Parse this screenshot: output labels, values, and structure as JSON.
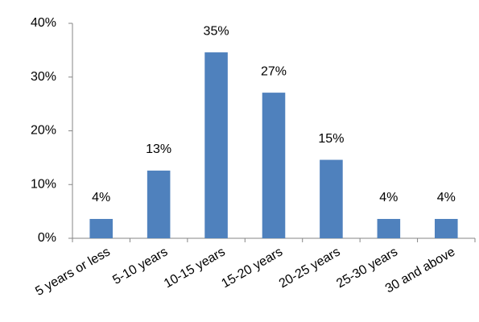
{
  "chart_data": {
    "type": "bar",
    "categories": [
      "5 years or less",
      "5-10 years",
      "10-15 years",
      "15-20 years",
      "20-25 years",
      "25-30 years",
      "30 and above"
    ],
    "values": [
      3.6,
      12.6,
      34.6,
      27.1,
      14.6,
      3.6,
      3.6
    ],
    "value_labels": [
      "4%",
      "13%",
      "35%",
      "27%",
      "15%",
      "4%",
      "4%"
    ],
    "color": "#4f81bd",
    "ylim": [
      0,
      40
    ],
    "yticks": [
      {
        "value": 0,
        "label": "0%"
      },
      {
        "value": 10,
        "label": "10%"
      },
      {
        "value": 20,
        "label": "20%"
      },
      {
        "value": 30,
        "label": "30%"
      },
      {
        "value": 40,
        "label": "40%"
      }
    ],
    "grid": false
  }
}
